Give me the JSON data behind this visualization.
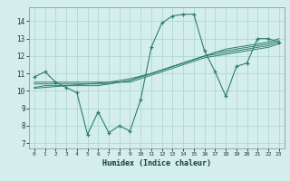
{
  "xlabel": "Humidex (Indice chaleur)",
  "background_color": "#d4eeeb",
  "line_color": "#2e7d6e",
  "grid_color": "#b0d8d4",
  "x_values": [
    0,
    1,
    2,
    3,
    4,
    5,
    6,
    7,
    8,
    9,
    10,
    11,
    12,
    13,
    14,
    15,
    16,
    17,
    18,
    19,
    20,
    21,
    22,
    23
  ],
  "main_y": [
    10.8,
    11.1,
    10.5,
    10.2,
    9.9,
    7.5,
    8.8,
    7.6,
    8.0,
    7.7,
    9.5,
    12.5,
    13.9,
    14.3,
    14.4,
    14.4,
    12.3,
    11.1,
    9.7,
    11.4,
    11.6,
    13.0,
    13.0,
    12.8
  ],
  "trend1_y": [
    10.5,
    10.5,
    10.5,
    10.5,
    10.5,
    10.5,
    10.5,
    10.5,
    10.5,
    10.5,
    10.7,
    10.9,
    11.1,
    11.3,
    11.5,
    11.7,
    11.9,
    12.0,
    12.1,
    12.2,
    12.3,
    12.4,
    12.5,
    12.7
  ],
  "trend2_y": [
    10.4,
    10.4,
    10.4,
    10.4,
    10.4,
    10.4,
    10.4,
    10.4,
    10.5,
    10.6,
    10.8,
    11.0,
    11.2,
    11.4,
    11.6,
    11.8,
    12.0,
    12.1,
    12.2,
    12.3,
    12.4,
    12.5,
    12.6,
    12.8
  ],
  "trend3_y": [
    10.2,
    10.3,
    10.3,
    10.3,
    10.3,
    10.3,
    10.3,
    10.4,
    10.5,
    10.6,
    10.8,
    11.0,
    11.2,
    11.4,
    11.6,
    11.8,
    12.0,
    12.2,
    12.3,
    12.4,
    12.5,
    12.6,
    12.7,
    12.9
  ],
  "trend4_y": [
    10.15,
    10.2,
    10.25,
    10.3,
    10.35,
    10.4,
    10.45,
    10.5,
    10.6,
    10.7,
    10.85,
    11.0,
    11.2,
    11.4,
    11.6,
    11.8,
    12.0,
    12.2,
    12.4,
    12.5,
    12.6,
    12.7,
    12.8,
    13.0
  ],
  "ylim": [
    6.7,
    14.8
  ],
  "yticks": [
    7,
    8,
    9,
    10,
    11,
    12,
    13,
    14
  ],
  "xlim": [
    -0.5,
    23.5
  ]
}
